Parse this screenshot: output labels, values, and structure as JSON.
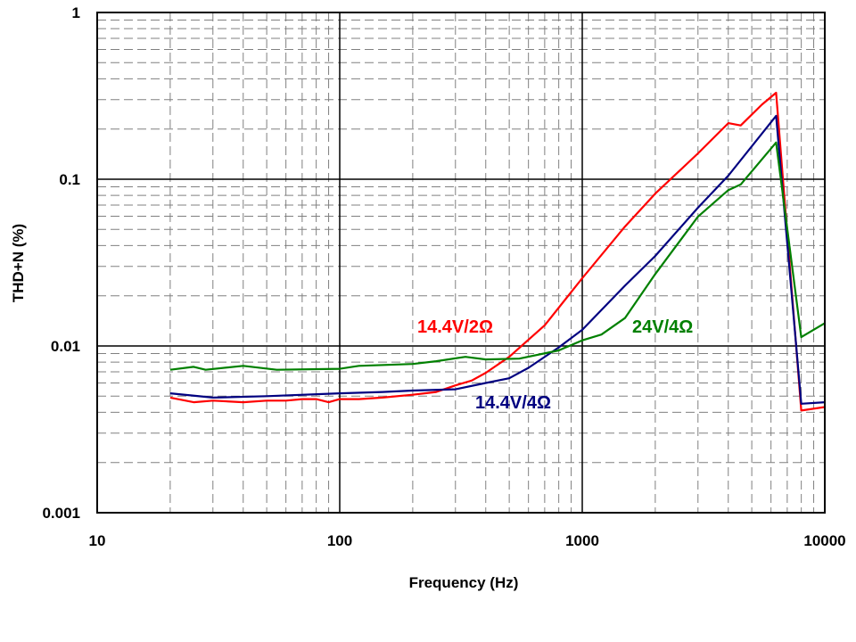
{
  "chart_data": {
    "type": "line",
    "title": "",
    "xlabel": "Frequency (Hz)",
    "ylabel": "THD+N (%)",
    "xscale": "log",
    "yscale": "log",
    "xlim": [
      10,
      10000
    ],
    "ylim": [
      0.001,
      1
    ],
    "x_ticks": [
      "10",
      "100",
      "1000",
      "10000"
    ],
    "y_ticks": [
      "0.001",
      "0.01",
      "0.1",
      "1"
    ],
    "grid": true,
    "series": [
      {
        "name": "14.4V/2Ω",
        "color": "#ff0000",
        "x": [
          20,
          25,
          30,
          40,
          50,
          60,
          70,
          80,
          90,
          100,
          120,
          150,
          200,
          250,
          300,
          350,
          400,
          500,
          700,
          1000,
          1500,
          2000,
          3000,
          4000,
          4500,
          5500,
          6300,
          8000,
          10000
        ],
        "y": [
          0.0049,
          0.0046,
          0.0047,
          0.0046,
          0.0047,
          0.0047,
          0.0048,
          0.0048,
          0.0046,
          0.0048,
          0.0048,
          0.0049,
          0.0051,
          0.0053,
          0.0058,
          0.0062,
          0.0069,
          0.0086,
          0.0133,
          0.0255,
          0.052,
          0.082,
          0.143,
          0.217,
          0.21,
          0.28,
          0.33,
          0.0041,
          0.0043
        ]
      },
      {
        "name": "14.4V/4Ω",
        "color": "#000080",
        "x": [
          20,
          30,
          50,
          100,
          150,
          200,
          300,
          400,
          500,
          600,
          800,
          1000,
          1500,
          2000,
          3000,
          4000,
          6300,
          8000,
          10000
        ],
        "y": [
          0.0052,
          0.0049,
          0.005,
          0.0052,
          0.0053,
          0.0054,
          0.0055,
          0.006,
          0.0064,
          0.0074,
          0.0098,
          0.0125,
          0.023,
          0.0347,
          0.0675,
          0.105,
          0.24,
          0.0045,
          0.0046
        ]
      },
      {
        "name": "24V/4Ω",
        "color": "#008000",
        "x": [
          20,
          25,
          28,
          40,
          55,
          100,
          120,
          200,
          250,
          330,
          400,
          550,
          800,
          1000,
          1200,
          1500,
          2000,
          3000,
          4000,
          4500,
          6300,
          8000,
          10000
        ],
        "y": [
          0.0072,
          0.0075,
          0.0072,
          0.0076,
          0.0072,
          0.0073,
          0.0076,
          0.0078,
          0.0081,
          0.0086,
          0.0083,
          0.0084,
          0.0094,
          0.0108,
          0.0117,
          0.0147,
          0.027,
          0.0597,
          0.086,
          0.093,
          0.166,
          0.0113,
          0.0137
        ]
      }
    ]
  }
}
